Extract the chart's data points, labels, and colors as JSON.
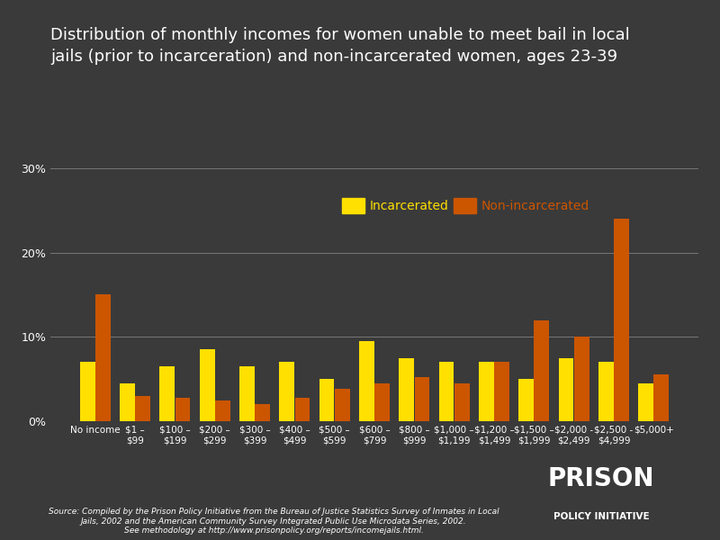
{
  "title": "Distribution of monthly incomes for women unable to meet bail in local\njails (prior to incarceration) and non-incarcerated women, ages 23-39",
  "categories": [
    "No income",
    "$1 –\n$99",
    "$100 –\n$199",
    "$200 –\n$299",
    "$300 –\n$399",
    "$400 –\n$499",
    "$500 –\n$599",
    "$600 –\n$799",
    "$800 –\n$999",
    "$1,000 –\n$1,199",
    "$1,200 –\n$1,499",
    "$1,500 –\n$1,999",
    "$2,000 -\n$2,499",
    "$2,500 -\n$4,999",
    "$5,000+"
  ],
  "incarcerated": [
    7.0,
    4.5,
    6.5,
    8.5,
    6.5,
    7.0,
    5.0,
    9.5,
    7.5,
    7.0,
    7.0,
    5.0,
    7.5,
    7.0,
    4.5
  ],
  "non_incarcerated": [
    15.0,
    3.0,
    2.8,
    2.5,
    2.0,
    2.8,
    3.8,
    4.5,
    5.2,
    4.5,
    7.0,
    12.0,
    10.0,
    24.0,
    5.5
  ],
  "incarcerated_color": "#FFE000",
  "non_incarcerated_color": "#CC5500",
  "background_color": "#3a3a3a",
  "text_color": "#FFFFFF",
  "grid_color": "#777777",
  "yticks": [
    0,
    10,
    20,
    30
  ],
  "ylim": [
    0,
    32
  ],
  "source_text": "Source: Compiled by the Prison Policy Initiative from the Bureau of Justice Statistics Survey of Inmates in Local\nJails, 2002 and the American Community Survey Integrated Public Use Microdata Series, 2002.\nSee methodology at http://www.prisonpolicy.org/reports/incomejails.html.",
  "logo_line1": "PRISON",
  "logo_line2": "POLICY INITIATIVE",
  "legend_incarcerated_label": "Incarcerated",
  "legend_non_incarcerated_label": "Non-incarcerated"
}
